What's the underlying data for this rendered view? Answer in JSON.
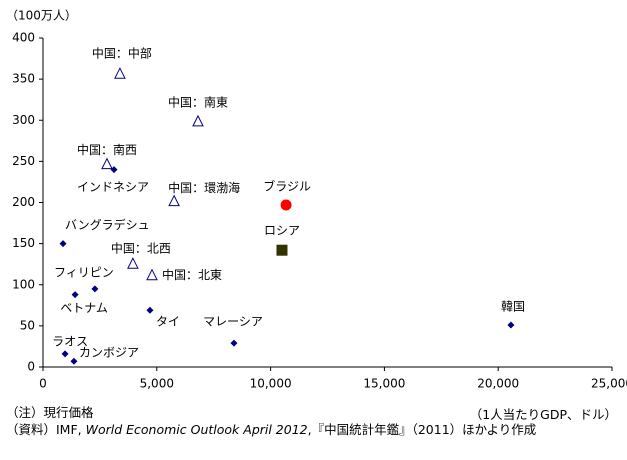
{
  "chart_data": {
    "type": "scatter",
    "y_unit": "（100万人）",
    "xlabel": "（1人当たりGDP、ドル）",
    "note": "（注）現行価格",
    "source": {
      "prefix": "（資料）IMF, ",
      "italic": "World Economic Outlook April 2012",
      "suffix": ",『中国統計年鑑』（2011）ほかより作成"
    },
    "xlim": [
      0,
      25000
    ],
    "xticks": [
      0,
      {
        "value": 5000,
        "label": "5,000"
      },
      {
        "value": 10000,
        "label": "10,000"
      },
      {
        "value": 15000,
        "label": "15,000"
      },
      {
        "value": 20000,
        "label": "20,000"
      },
      {
        "value": 25000,
        "label": "25,000"
      }
    ],
    "ylim": [
      0,
      400
    ],
    "yticks": [
      0,
      50,
      100,
      150,
      200,
      250,
      300,
      350,
      400
    ],
    "series": [
      {
        "marker": "triangle",
        "color": "#000080",
        "labels": [
          "中国：中部",
          "中国：南東",
          "中国：南西",
          "中国：環渤海",
          "中国：北西",
          "中国：北東"
        ],
        "x": [
          3380,
          6810,
          2810,
          5760,
          3950,
          4790
        ],
        "values": [
          356,
          298,
          246,
          201,
          125,
          111
        ]
      },
      {
        "marker": "diamond",
        "color": "#000080",
        "labels": [
          "インドネシア",
          "バングラデシュ",
          "フィリピン",
          "ベトナム",
          "タイ",
          "マレーシア",
          "ラオス",
          "カンボジア",
          "韓国"
        ],
        "x": [
          3120,
          880,
          2280,
          1410,
          4700,
          8390,
          970,
          1360,
          20560
        ],
        "values": [
          240,
          150,
          95,
          88,
          69,
          29,
          16,
          7,
          51
        ]
      },
      {
        "marker": "circle",
        "color": "#ff0000",
        "labels": [
          "ブラジル"
        ],
        "x": [
          10680
        ],
        "values": [
          197
        ]
      },
      {
        "marker": "square",
        "color": "#333300",
        "labels": [
          "ロシア"
        ],
        "x": [
          10500
        ],
        "values": [
          142
        ]
      }
    ]
  }
}
